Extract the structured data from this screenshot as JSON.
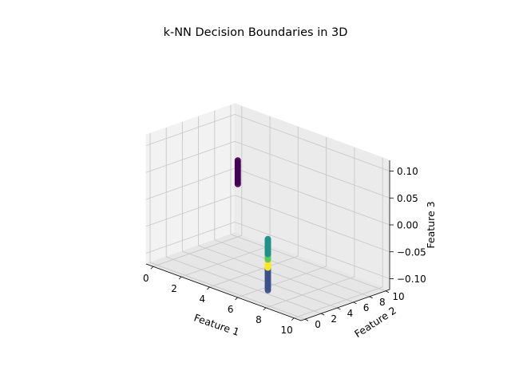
{
  "chart_data": {
    "type": "scatter",
    "projection": "3d",
    "title": "k-NN Decision Boundaries in 3D",
    "xlabel": "Feature 1",
    "ylabel": "Feature 2",
    "zlabel": "Feature 3",
    "xlim": [
      -0.5,
      10.5
    ],
    "ylim": [
      -0.5,
      10.5
    ],
    "zlim": [
      -0.12,
      0.12
    ],
    "xticks": [
      "0",
      "2",
      "4",
      "6",
      "8",
      "10"
    ],
    "yticks": [
      "0",
      "2",
      "4",
      "6",
      "8",
      "10"
    ],
    "zticks": [
      "0.10",
      "0.05",
      "0.00",
      "−0.05",
      "−0.10"
    ],
    "grid": true,
    "colormap": "viridis",
    "colors": {
      "class_0": "#440154",
      "class_1": "#3b528b",
      "class_2": "#21918c",
      "class_3": "#5ec962",
      "class_4": "#fde725"
    },
    "point_groups": [
      {
        "color_key": "class_0",
        "x": 0.0,
        "y": 10.0,
        "z_from": -0.022,
        "z_to": 0.022
      },
      {
        "color_key": "class_1",
        "x": 5.0,
        "y": 5.0,
        "z_from": -0.145,
        "z_to": -0.103
      },
      {
        "color_key": "class_4",
        "x": 5.0,
        "y": 5.0,
        "z_from": -0.103,
        "z_to": -0.088
      },
      {
        "color_key": "class_3",
        "x": 5.0,
        "y": 5.0,
        "z_from": -0.088,
        "z_to": -0.078
      },
      {
        "color_key": "class_2",
        "x": 5.0,
        "y": 5.0,
        "z_from": -0.078,
        "z_to": -0.05
      }
    ]
  }
}
